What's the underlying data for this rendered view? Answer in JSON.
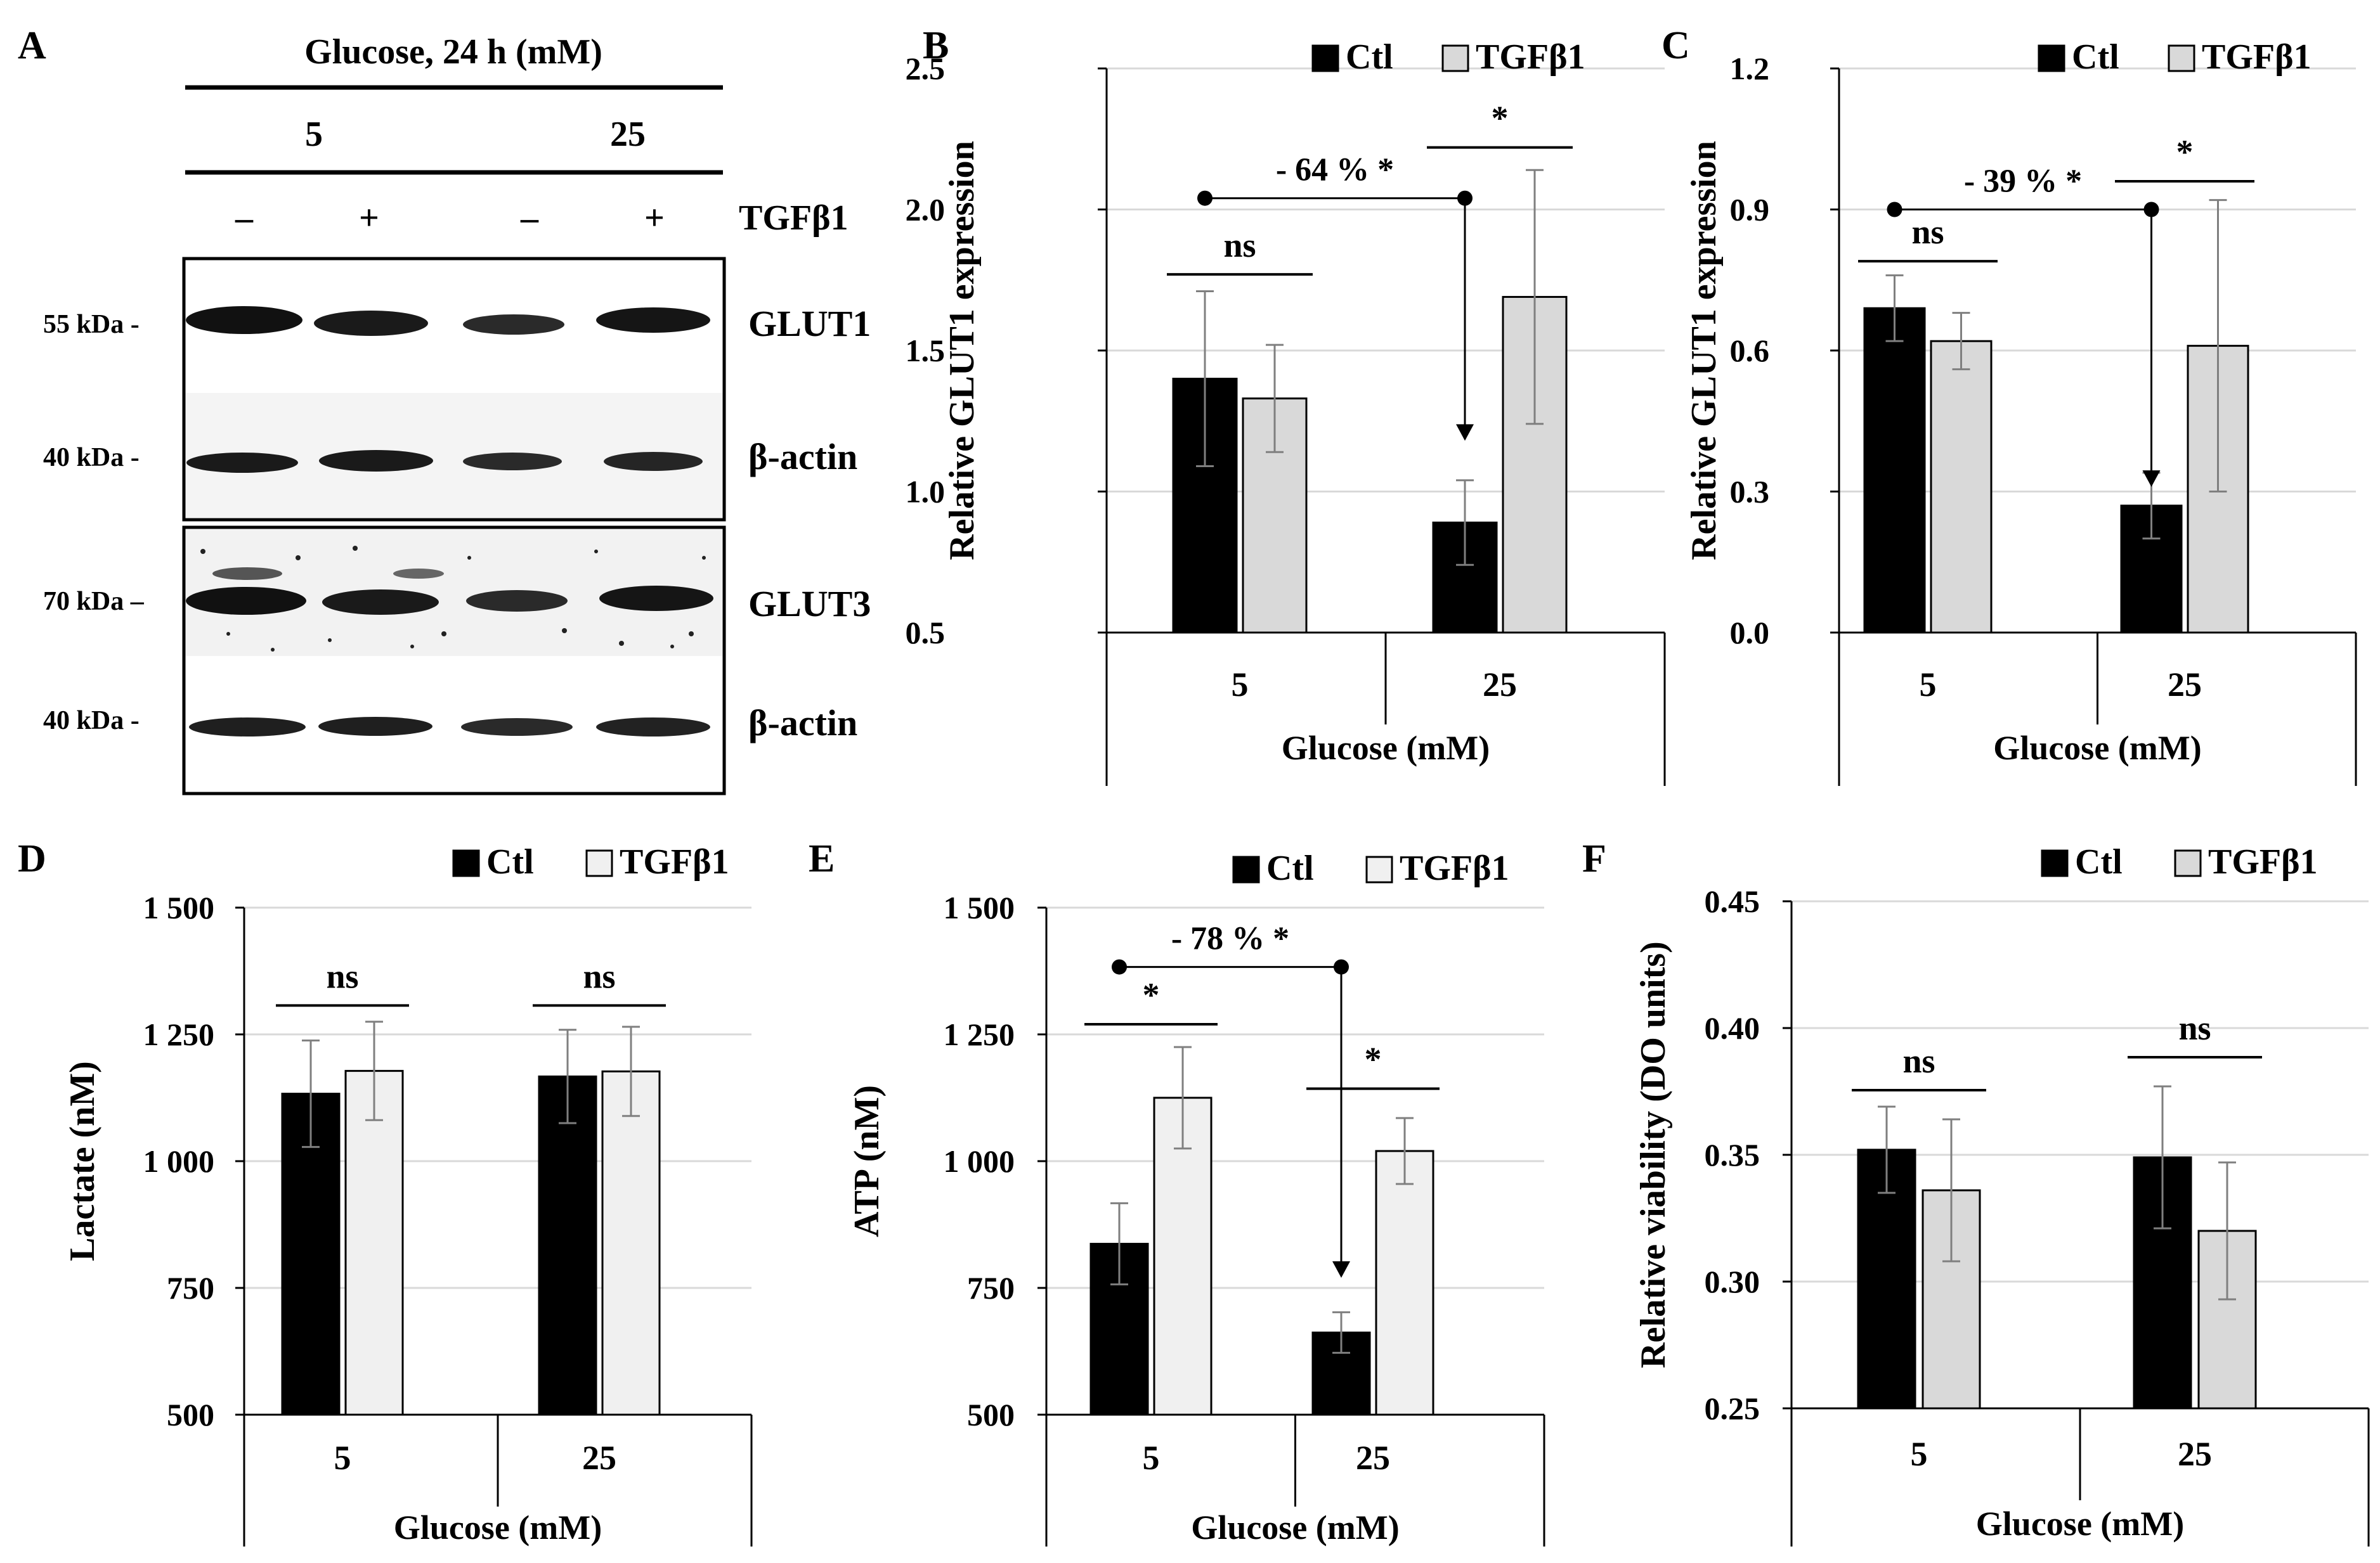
{
  "panel_a": {
    "panel_letter": "A",
    "header": "Glucose, 24 h (mM)",
    "glucose_levels": [
      "5",
      "25"
    ],
    "lane_signs": [
      "–",
      "+",
      "–",
      "+"
    ],
    "treatment_label": "TGFβ1",
    "blot1": {
      "rows": [
        {
          "marker": "55 kDa -",
          "protein": "GLUT1"
        },
        {
          "marker": "40 kDa -",
          "protein": "β-actin"
        }
      ]
    },
    "blot2": {
      "rows": [
        {
          "marker": "70 kDa –",
          "protein": "GLUT3"
        },
        {
          "marker": "40 kDa -",
          "protein": "β-actin"
        }
      ]
    }
  },
  "chart_data": [
    {
      "panel": "B",
      "type": "bar",
      "ylabel": "Relative GLUT1 expression",
      "xlabel": "Glucose (mM)",
      "categories": [
        "5",
        "25"
      ],
      "ylim": [
        0.5,
        2.5
      ],
      "yticks": [
        "0.5",
        "1.0",
        "1.5",
        "2.0",
        "2.5"
      ],
      "ytick_values": [
        0.5,
        1.0,
        1.5,
        2.0,
        2.5
      ],
      "legend": [
        "Ctl",
        "TGFβ1"
      ],
      "series": [
        {
          "name": "Ctl",
          "color": "#000000",
          "values": [
            1.4,
            0.89
          ],
          "errors": [
            0.31,
            0.15
          ]
        },
        {
          "name": "TGFβ1",
          "color": "#d9d9d9",
          "values": [
            1.33,
            1.69
          ],
          "errors": [
            0.19,
            0.45
          ]
        }
      ],
      "grid": true,
      "annotations": {
        "sig_left": {
          "label": "ns",
          "y": 1.77
        },
        "sig_right": {
          "label": "*",
          "y": 2.22
        },
        "arrow": {
          "label": "- 64 % *",
          "y": 2.04,
          "arrow_to": 1.18
        }
      }
    },
    {
      "panel": "C",
      "type": "bar",
      "ylabel": "Relative GLUT1 expression",
      "xlabel": "Glucose (mM)",
      "categories": [
        "5",
        "25"
      ],
      "ylim": [
        0.0,
        1.2
      ],
      "yticks": [
        "0.0",
        "0.3",
        "0.6",
        "0.9",
        "1.2"
      ],
      "ytick_values": [
        0.0,
        0.3,
        0.6,
        0.9,
        1.2
      ],
      "legend": [
        "Ctl",
        "TGFβ1"
      ],
      "series": [
        {
          "name": "Ctl",
          "color": "#000000",
          "values": [
            0.69,
            0.27
          ],
          "errors": [
            0.07,
            0.07
          ]
        },
        {
          "name": "TGFβ1",
          "color": "#d9d9d9",
          "values": [
            0.62,
            0.61
          ],
          "errors": [
            0.06,
            0.31
          ]
        }
      ],
      "grid": true,
      "annotations": {
        "sig_left": {
          "label": "ns",
          "y": 0.79
        },
        "sig_right": {
          "label": "*",
          "y": 0.96
        },
        "arrow": {
          "label": "- 39 % *",
          "y": 0.9,
          "arrow_to": 0.31
        }
      }
    },
    {
      "panel": "D",
      "type": "bar",
      "ylabel": "Lactate (nM)",
      "xlabel": "Glucose (mM)",
      "categories": [
        "5",
        "25"
      ],
      "ylim": [
        500,
        1500
      ],
      "yticks": [
        "500",
        "750",
        "1 000",
        "1 250",
        "1 500"
      ],
      "ytick_values": [
        500,
        750,
        1000,
        1250,
        1500
      ],
      "legend": [
        "Ctl",
        "TGFβ1"
      ],
      "series": [
        {
          "name": "Ctl",
          "color": "#000000",
          "values": [
            1133,
            1167
          ],
          "errors": [
            105,
            92
          ]
        },
        {
          "name": "TGFβ1",
          "color": "#f0f0f0",
          "values": [
            1178,
            1177
          ],
          "errors": [
            97,
            88
          ]
        }
      ],
      "grid": true,
      "annotations": {
        "sig_left": {
          "label": "ns",
          "y": 1307
        },
        "sig_right": {
          "label": "ns",
          "y": 1307
        }
      }
    },
    {
      "panel": "E",
      "type": "bar",
      "ylabel": "ATP (nM)",
      "xlabel": "Glucose (mM)",
      "categories": [
        "5",
        "25"
      ],
      "ylim": [
        500,
        1500
      ],
      "yticks": [
        "500",
        "750",
        "1 000",
        "1 250",
        "1 500"
      ],
      "ytick_values": [
        500,
        750,
        1000,
        1250,
        1500
      ],
      "legend": [
        "Ctl",
        "TGFβ1"
      ],
      "series": [
        {
          "name": "Ctl",
          "color": "#000000",
          "values": [
            837,
            662
          ],
          "errors": [
            80,
            40
          ]
        },
        {
          "name": "TGFβ1",
          "color": "#f0f0f0",
          "values": [
            1125,
            1020
          ],
          "errors": [
            100,
            65
          ]
        }
      ],
      "grid": true,
      "annotations": {
        "sig_left": {
          "label": "*",
          "y": 1270
        },
        "sig_right": {
          "label": "*",
          "y": 1143
        },
        "arrow": {
          "label": "- 78 % *",
          "y": 1383,
          "arrow_to": 770
        }
      }
    },
    {
      "panel": "F",
      "type": "bar",
      "ylabel": "Relative viability (DO units)",
      "xlabel": "Glucose (mM)",
      "categories": [
        "5",
        "25"
      ],
      "ylim": [
        0.25,
        0.45
      ],
      "yticks": [
        "0.25",
        "0.30",
        "0.35",
        "0.40",
        "0.45"
      ],
      "ytick_values": [
        0.25,
        0.3,
        0.35,
        0.4,
        0.45
      ],
      "legend": [
        "Ctl",
        "TGFβ1"
      ],
      "series": [
        {
          "name": "Ctl",
          "color": "#000000",
          "values": [
            0.352,
            0.349
          ],
          "errors": [
            0.017,
            0.028
          ]
        },
        {
          "name": "TGFβ1",
          "color": "#d9d9d9",
          "values": [
            0.336,
            0.32
          ],
          "errors": [
            0.028,
            0.027
          ]
        }
      ],
      "grid": true,
      "annotations": {
        "sig_left": {
          "label": "ns",
          "y": 0.3755
        },
        "sig_right": {
          "label": "ns",
          "y": 0.3885
        }
      }
    }
  ]
}
